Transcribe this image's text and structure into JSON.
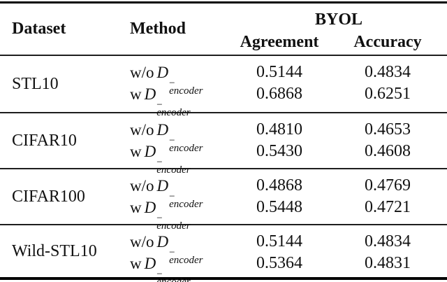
{
  "header": {
    "dataset": "Dataset",
    "method": "Method",
    "group": "BYOL",
    "agreement": "Agreement",
    "accuracy": "Accuracy"
  },
  "method": {
    "without_prefix": "w/o",
    "with_prefix": "w",
    "var": "D",
    "sup": "−",
    "sub": "encoder"
  },
  "sections": [
    {
      "dataset": "STL10",
      "rows": [
        {
          "agreement": "0.5144",
          "accuracy": "0.4834"
        },
        {
          "agreement": "0.6868",
          "accuracy": "0.6251"
        }
      ]
    },
    {
      "dataset": "CIFAR10",
      "rows": [
        {
          "agreement": "0.4810",
          "accuracy": "0.4653"
        },
        {
          "agreement": "0.5430",
          "accuracy": "0.4608"
        }
      ]
    },
    {
      "dataset": "CIFAR100",
      "rows": [
        {
          "agreement": "0.4868",
          "accuracy": "0.4769"
        },
        {
          "agreement": "0.5448",
          "accuracy": "0.4721"
        }
      ]
    },
    {
      "dataset": "Wild-STL10",
      "rows": [
        {
          "agreement": "0.5144",
          "accuracy": "0.4834"
        },
        {
          "agreement": "0.5364",
          "accuracy": "0.4831"
        }
      ]
    }
  ],
  "colors": {
    "text": "#111111",
    "rule": "#000000",
    "background": "#ffffff"
  }
}
